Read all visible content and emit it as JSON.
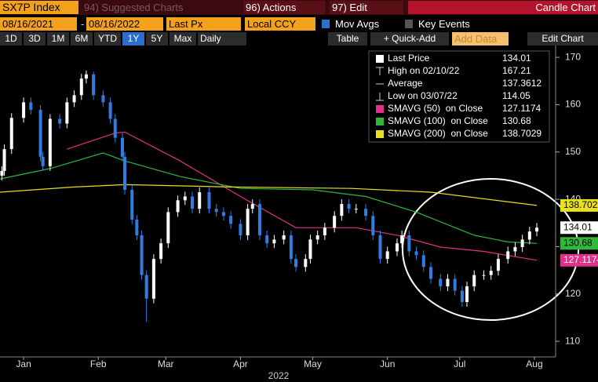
{
  "toolbar": {
    "ticker": "SX7P Index",
    "suggested": "94) Suggested Charts",
    "actions": "96) Actions",
    "edit": "97) Edit",
    "chart_type": "Candle Chart",
    "start_date": "08/16/2021",
    "end_date": "08/16/2022",
    "field": "Last Px",
    "currency": "Local CCY",
    "mov_avgs": "Mov Avgs",
    "key_events": "Key Events",
    "ranges": [
      "1D",
      "3D",
      "1M",
      "6M",
      "YTD",
      "1Y",
      "5Y",
      "Max"
    ],
    "selected_range": "1Y",
    "period": "Daily",
    "table": "Table",
    "quick_add": "+ Quick-Add",
    "add_data": "Add Data",
    "edit_chart": "Edit Chart"
  },
  "chart_data": {
    "type": "candlestick",
    "up_color": "#ffffff",
    "down_color": "#2f7de1",
    "x": [
      5,
      6,
      9,
      14,
      17,
      21,
      22,
      25,
      29,
      32,
      35,
      38,
      40,
      43,
      47,
      50,
      52,
      55,
      56,
      59,
      61,
      63,
      65,
      68,
      71,
      74,
      78,
      81,
      84,
      87,
      91,
      94,
      97,
      100,
      104,
      107,
      109,
      112,
      115,
      118,
      122,
      125,
      127,
      131,
      133,
      136,
      139,
      143,
      146,
      149,
      152,
      156,
      159,
      162,
      165,
      169,
      171,
      174,
      177,
      180,
      183,
      187,
      190,
      193,
      196,
      198,
      201,
      205,
      208,
      211,
      215,
      218,
      221,
      224,
      227
    ],
    "open": [
      145,
      146,
      150.6,
      157.2,
      160.5,
      158.9,
      149,
      147,
      157,
      156,
      160.5,
      162,
      165.5,
      166.4,
      162,
      160.5,
      157,
      153,
      149,
      142,
      135.7,
      132.4,
      124,
      119,
      127.4,
      130.7,
      137.3,
      139.8,
      140.6,
      138,
      141.5,
      138,
      137.3,
      136.5,
      134.8,
      132.4,
      138,
      139,
      132.4,
      130.7,
      131.5,
      132.4,
      127.4,
      125.7,
      127.4,
      131.5,
      132.4,
      134,
      136.5,
      139,
      138,
      138,
      136.5,
      132.4,
      127.4,
      129,
      130.7,
      132.4,
      129,
      128.2,
      125.7,
      123.2,
      121.6,
      123.2,
      120.7,
      118.3,
      121.6,
      124,
      124,
      124.9,
      127.4,
      129,
      129.9,
      131.5,
      133.2
    ],
    "high": [
      147,
      151.6,
      158.2,
      161.5,
      161.5,
      159.9,
      150,
      158,
      158,
      161.5,
      163,
      166.5,
      167.21,
      167,
      163,
      161.5,
      158,
      154,
      150,
      143,
      136.7,
      133.4,
      125,
      128.4,
      131.7,
      138.3,
      140.8,
      141.6,
      141.6,
      142.5,
      142.5,
      139,
      138.3,
      137.5,
      135.8,
      139,
      140,
      140,
      133.4,
      132.5,
      133.4,
      133.4,
      128.4,
      128.4,
      132.5,
      133.4,
      135,
      137.5,
      140,
      140,
      139,
      139,
      137.5,
      133.4,
      130,
      131.7,
      133.4,
      133.4,
      130,
      129.2,
      126.7,
      124.2,
      124.2,
      124.2,
      121.7,
      122.6,
      125,
      125,
      125.9,
      128.4,
      130,
      130.9,
      132.5,
      134.2,
      135
    ],
    "low": [
      144,
      145,
      149.6,
      156.2,
      157.9,
      148,
      146,
      146,
      155,
      155,
      159.5,
      161,
      164.5,
      161,
      159.5,
      156,
      152,
      148,
      141,
      134.7,
      131.4,
      123,
      114.05,
      118,
      126.4,
      129.7,
      136.3,
      138.8,
      137,
      137,
      137,
      136.3,
      135.5,
      133.8,
      131.4,
      131.4,
      137,
      131.4,
      129.7,
      129.7,
      130.5,
      126.4,
      124.7,
      124.7,
      126.4,
      130.5,
      131.4,
      133,
      135.5,
      137,
      137,
      135.5,
      131.4,
      126.4,
      126.4,
      128,
      129.7,
      128,
      127.2,
      124.7,
      122.2,
      120.6,
      120.6,
      119.7,
      117.3,
      117.3,
      120.6,
      123,
      123,
      123.9,
      126.4,
      128,
      128.9,
      130.5,
      132.2
    ],
    "close": [
      146,
      150.6,
      157.2,
      160.5,
      158.9,
      149,
      147,
      157,
      156,
      160.5,
      162,
      165.5,
      166.4,
      162,
      160.5,
      157,
      153,
      149,
      142,
      135.7,
      132.4,
      124,
      119,
      127.4,
      130.7,
      137.3,
      139.8,
      140.6,
      138,
      141.5,
      138,
      137.3,
      136.5,
      134.8,
      132.4,
      138,
      139,
      132.4,
      130.7,
      131.5,
      132.4,
      127.4,
      125.7,
      127.4,
      131.5,
      132.4,
      134,
      136.5,
      139,
      138,
      138,
      136.5,
      132.4,
      127.4,
      129,
      130.7,
      132.4,
      129,
      128.2,
      125.7,
      123.2,
      121.6,
      123.2,
      120.7,
      118.3,
      121.6,
      124,
      124,
      124.9,
      127.4,
      129,
      129.9,
      131.5,
      133.2,
      134.01
    ],
    "moving_averages": [
      {
        "name": "SMAVG (50)  on Close",
        "color": "#e0308a",
        "x": [
          32,
          52,
          56,
          79,
          104,
          127,
          152,
          169,
          187,
          205,
          227
        ],
        "values": [
          150.6,
          154,
          154.2,
          148.1,
          140.6,
          134,
          134,
          132.4,
          129.9,
          129,
          127.1174
        ]
      },
      {
        "name": "SMAVG (100)  on Close",
        "color": "#2fb83a",
        "x": [
          4.2,
          25,
          47,
          56,
          79,
          104,
          134,
          156,
          177,
          201,
          215,
          227
        ],
        "values": [
          144.3,
          146.5,
          149.8,
          148.1,
          144.8,
          142.3,
          142,
          140.6,
          137.3,
          132.4,
          131,
          130.68
        ]
      },
      {
        "name": "SMAVG (200)  on Close",
        "color": "#e8e020",
        "x": [
          4.2,
          35,
          56,
          100,
          150,
          183,
          227
        ],
        "values": [
          141.5,
          142.6,
          143.1,
          142.6,
          142.3,
          141.5,
          138.7029
        ]
      }
    ],
    "legend_labels": {
      "last": "Last Price",
      "high": "High on 02/10/22",
      "average": "Average",
      "low": "Low on 03/07/22"
    },
    "average": 137.3612,
    "xlim": [
      4.2,
      234.8
    ],
    "xticks": [
      {
        "value": 14,
        "label": "Jan"
      },
      {
        "value": 45,
        "label": "Feb"
      },
      {
        "value": 73,
        "label": "Mar"
      },
      {
        "value": 104,
        "label": "Apr"
      },
      {
        "value": 134,
        "label": "May"
      },
      {
        "value": 165,
        "label": "Jun"
      },
      {
        "value": 195,
        "label": "Jul"
      },
      {
        "value": 226,
        "label": "Aug"
      }
    ],
    "x_year": "2022",
    "ylim": [
      106.7,
      172.5
    ],
    "yticks": [
      110,
      120,
      130,
      140,
      150,
      160,
      170
    ]
  }
}
